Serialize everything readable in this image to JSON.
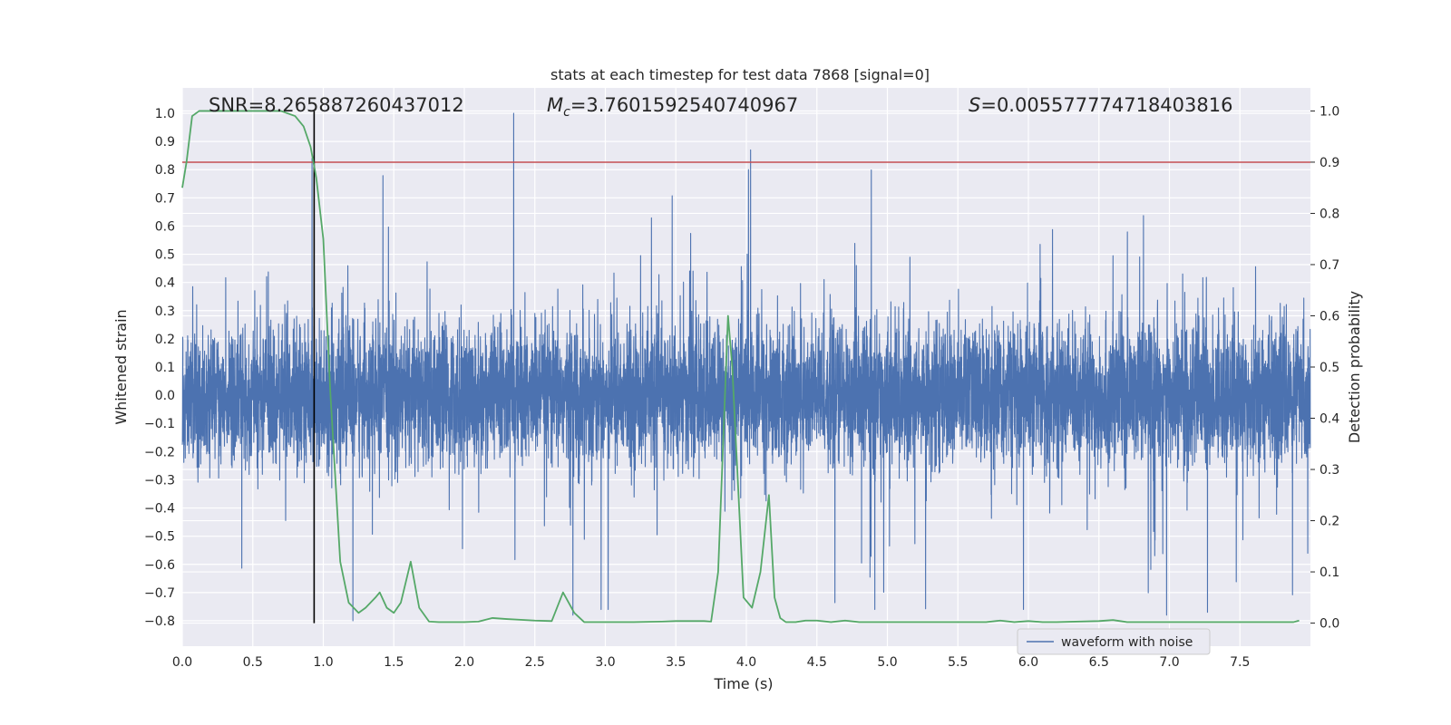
{
  "chart_data": {
    "type": "line",
    "title": "stats at each timestep for test data 7868 [signal=0]",
    "xlabel": "Time (s)",
    "ylabel": "Whitened strain",
    "y2label": "Detection probability",
    "xlim": [
      0.0,
      8.0
    ],
    "ylim": [
      -0.89,
      1.09
    ],
    "y2lim": [
      -0.045,
      1.045
    ],
    "xticks": [
      "0.0",
      "0.5",
      "1.0",
      "1.5",
      "2.0",
      "2.5",
      "3.0",
      "3.5",
      "4.0",
      "4.5",
      "5.0",
      "5.5",
      "6.0",
      "6.5",
      "7.0",
      "7.5"
    ],
    "yticks": [
      "1.0",
      "0.9",
      "0.8",
      "0.7",
      "0.6",
      "0.5",
      "0.4",
      "0.3",
      "0.2",
      "0.1",
      "0.0",
      "−0.1",
      "−0.2",
      "−0.3",
      "−0.4",
      "−0.5",
      "−0.6",
      "−0.7",
      "−0.8"
    ],
    "y2ticks": [
      "1.0",
      "0.9",
      "0.8",
      "0.7",
      "0.6",
      "0.5",
      "0.4",
      "0.3",
      "0.2",
      "0.1",
      "0.0"
    ],
    "grid": true,
    "legend": {
      "position": "lower-right",
      "entries": [
        "waveform with noise"
      ]
    },
    "annotations": {
      "snr": {
        "symbol": "SNR",
        "value": "=8.265887260437012"
      },
      "mc": {
        "symbol": "M",
        "subscript": "c",
        "value": "=3.7601592540740967"
      },
      "s": {
        "symbol": "S",
        "value": "=0.005577774718403816"
      }
    },
    "threshold_probability": 0.9,
    "marker_time": 0.935,
    "series": [
      {
        "name": "waveform with noise",
        "axis": "left",
        "color": "#4c72b0",
        "sample_count": 8000,
        "envelope": "noise mostly within ±0.3 with spikes to about ±0.8",
        "spikes": [
          [
            0.92,
            0.84
          ],
          [
            2.35,
            1.0
          ],
          [
            4.03,
            0.87
          ],
          [
            1.21,
            -0.8
          ],
          [
            2.77,
            -0.78
          ],
          [
            6.98,
            -0.78
          ],
          [
            7.27,
            -0.77
          ],
          [
            3.02,
            -0.76
          ]
        ]
      },
      {
        "name": "detection probability",
        "axis": "right",
        "color": "#55a868",
        "x": [
          0.0,
          0.03,
          0.07,
          0.12,
          0.18,
          0.3,
          0.5,
          0.7,
          0.8,
          0.86,
          0.91,
          0.95,
          1.0,
          1.05,
          1.12,
          1.18,
          1.25,
          1.3,
          1.37,
          1.4,
          1.45,
          1.5,
          1.55,
          1.62,
          1.68,
          1.75,
          1.82,
          2.0,
          2.1,
          2.2,
          2.3,
          2.5,
          2.62,
          2.7,
          2.78,
          2.85,
          3.0,
          3.2,
          3.4,
          3.5,
          3.6,
          3.7,
          3.75,
          3.8,
          3.87,
          3.9,
          3.98,
          4.04,
          4.1,
          4.16,
          4.2,
          4.24,
          4.28,
          4.35,
          4.42,
          4.5,
          4.6,
          4.7,
          4.8,
          4.9,
          5.0,
          5.5,
          5.7,
          5.8,
          5.9,
          6.0,
          6.1,
          6.2,
          6.5,
          6.6,
          6.7,
          6.8,
          7.0,
          7.5,
          7.8,
          7.88,
          7.92
        ],
        "values": [
          0.85,
          0.9,
          0.99,
          1.0,
          1.0,
          1.0,
          1.0,
          1.0,
          0.99,
          0.97,
          0.93,
          0.87,
          0.75,
          0.45,
          0.12,
          0.04,
          0.02,
          0.03,
          0.05,
          0.06,
          0.03,
          0.02,
          0.04,
          0.12,
          0.03,
          0.003,
          0.002,
          0.002,
          0.003,
          0.01,
          0.008,
          0.005,
          0.004,
          0.06,
          0.02,
          0.002,
          0.002,
          0.002,
          0.003,
          0.004,
          0.004,
          0.004,
          0.003,
          0.1,
          0.6,
          0.5,
          0.05,
          0.03,
          0.1,
          0.25,
          0.05,
          0.01,
          0.002,
          0.002,
          0.005,
          0.005,
          0.002,
          0.005,
          0.002,
          0.002,
          0.002,
          0.002,
          0.002,
          0.005,
          0.002,
          0.004,
          0.002,
          0.002,
          0.004,
          0.006,
          0.002,
          0.002,
          0.002,
          0.002,
          0.002,
          0.002,
          0.005
        ]
      }
    ],
    "colors": {
      "background": "#eaeaf2",
      "grid": "#ffffff",
      "threshold": "#c44e52",
      "marker": "#000000",
      "text": "#262626"
    }
  }
}
